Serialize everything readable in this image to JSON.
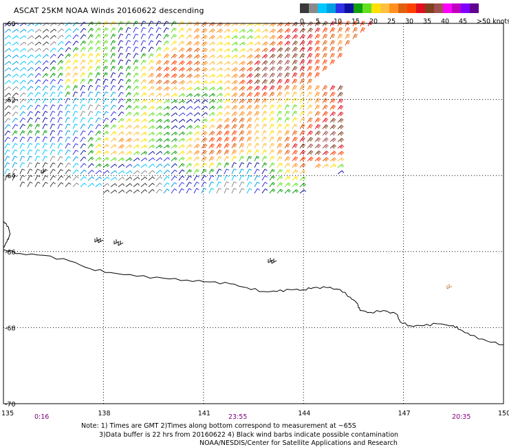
{
  "title": "ASCAT 25KM NOAA Winds 20160622 descending",
  "colorbar": {
    "colors": [
      "#3a3a3a",
      "#8a8a8a",
      "#00c8ff",
      "#00a0e0",
      "#3030e8",
      "#1010a0",
      "#10a010",
      "#60e020",
      "#ffe000",
      "#ffc040",
      "#ff9020",
      "#e06010",
      "#ff4000",
      "#e01020",
      "#804020",
      "#a05050",
      "#ff00ff",
      "#c000c0",
      "#8000ff",
      "#600090"
    ],
    "labels": [
      "0",
      "5",
      "10",
      "15",
      "20",
      "25",
      "30",
      "35",
      "40",
      "45",
      ">50 knots"
    ]
  },
  "map": {
    "lon_range": [
      135,
      150
    ],
    "lat_range": [
      -70,
      -60
    ],
    "lat_labels": [
      "-60",
      "-62",
      "-64",
      "-66",
      "-68",
      "-70"
    ],
    "lon_labels": [
      "135",
      "138",
      "141",
      "144",
      "147",
      "150"
    ],
    "time_labels": [
      "0:16",
      "23:55",
      "20:35"
    ],
    "grid": true,
    "coastline": [
      [
        135.0,
        -65.95
      ],
      [
        135.5,
        -66.05
      ],
      [
        136.2,
        -66.1
      ],
      [
        137.0,
        -66.25
      ],
      [
        137.6,
        -66.45
      ],
      [
        138.2,
        -66.55
      ],
      [
        139.0,
        -66.65
      ],
      [
        139.8,
        -66.7
      ],
      [
        140.5,
        -66.75
      ],
      [
        141.2,
        -66.8
      ],
      [
        141.8,
        -66.85
      ],
      [
        142.3,
        -66.95
      ],
      [
        142.8,
        -67.05
      ],
      [
        143.2,
        -67.05
      ],
      [
        143.6,
        -67.0
      ],
      [
        144.0,
        -67.0
      ],
      [
        144.3,
        -66.95
      ],
      [
        144.7,
        -66.95
      ],
      [
        145.1,
        -67.0
      ],
      [
        145.4,
        -67.2
      ],
      [
        145.6,
        -67.35
      ],
      [
        145.7,
        -67.55
      ],
      [
        146.0,
        -67.6
      ],
      [
        146.4,
        -67.55
      ],
      [
        146.8,
        -67.65
      ],
      [
        146.9,
        -67.85
      ],
      [
        147.2,
        -67.95
      ],
      [
        147.6,
        -67.95
      ],
      [
        148.0,
        -67.9
      ],
      [
        148.5,
        -67.95
      ],
      [
        148.7,
        -68.05
      ],
      [
        149.0,
        -68.2
      ],
      [
        149.5,
        -68.35
      ],
      [
        150.0,
        -68.45
      ]
    ],
    "coastline_north": [
      [
        135.0,
        -65.2
      ],
      [
        135.15,
        -65.35
      ],
      [
        135.2,
        -65.55
      ],
      [
        135.1,
        -65.75
      ],
      [
        135.0,
        -65.9
      ]
    ],
    "wind_region": {
      "lon_min": 135,
      "lon_max": 145.2,
      "lat_top": -60,
      "lat_bottom": -64.5
    }
  },
  "notes": {
    "line1": "Note: 1) Times are GMT 2)Times along bottom correspond to measurement at ~65S",
    "line2": "3)Data buffer is 22 hrs from 20160622 4) Black wind barbs indicate possible contamination",
    "line3": "NOAA/NESDIS/Center for Satellite Applications and Research"
  }
}
